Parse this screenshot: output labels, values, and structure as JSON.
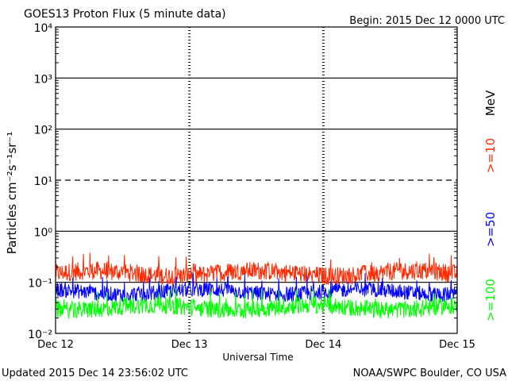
{
  "chart_data": {
    "type": "line",
    "title": "GOES13 Proton Flux (5 minute data)",
    "begin_label": "Begin: 2015 Dec 12 0000 UTC",
    "xlabel": "Universal Time",
    "ylabel": "Particles cm⁻²s⁻¹sr⁻¹",
    "y_scale": "log",
    "ylim": [
      0.01,
      10000
    ],
    "y_ticks": [
      {
        "value": 0.01,
        "label": "10⁻²"
      },
      {
        "value": 0.1,
        "label": "10⁻¹"
      },
      {
        "value": 1,
        "label": "10⁰"
      },
      {
        "value": 10,
        "label": "10¹"
      },
      {
        "value": 100,
        "label": "10²"
      },
      {
        "value": 1000,
        "label": "10³"
      },
      {
        "value": 10000,
        "label": "10⁴"
      }
    ],
    "dashed_threshold": 10,
    "x_ticks": [
      "Dec 12",
      "Dec 13",
      "Dec 14",
      "Dec 15"
    ],
    "grid": true,
    "legend_placement": "right",
    "legend_unit": "MeV",
    "series": [
      {
        "name": ">=10",
        "color": "#ff2800",
        "base": 0.15,
        "spread": 0.18,
        "peak": 0.38
      },
      {
        "name": ">=50",
        "color": "#0000ff",
        "base": 0.065,
        "spread": 0.15,
        "peak": 0.15
      },
      {
        "name": ">=100",
        "color": "#00ff00",
        "base": 0.032,
        "spread": 0.17,
        "peak": 0.075
      }
    ]
  },
  "footer": {
    "updated": "Updated 2015 Dec 14 23:56:02 UTC",
    "credit": "NOAA/SWPC Boulder, CO USA"
  }
}
